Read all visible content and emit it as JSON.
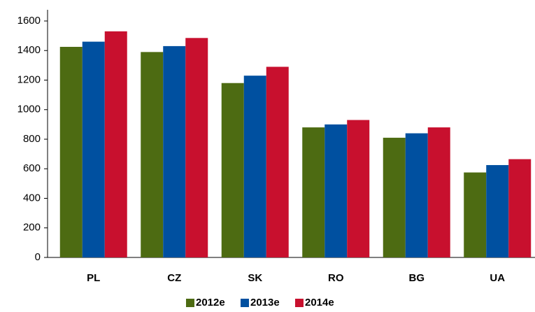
{
  "chart_data": {
    "type": "bar",
    "categories": [
      "PL",
      "CZ",
      "SK",
      "RO",
      "BG",
      "UA"
    ],
    "series": [
      {
        "name": "2012e",
        "color": "#4d6b12",
        "values": [
          1425,
          1390,
          1180,
          880,
          810,
          575
        ]
      },
      {
        "name": "2013e",
        "color": "#0050a0",
        "values": [
          1460,
          1430,
          1230,
          900,
          840,
          625
        ]
      },
      {
        "name": "2014e",
        "color": "#c8102e",
        "values": [
          1530,
          1485,
          1290,
          930,
          880,
          665
        ]
      }
    ],
    "ylim": [
      0,
      1600
    ],
    "yticks": [
      0,
      200,
      400,
      600,
      800,
      1000,
      1200,
      1400,
      1600
    ],
    "legend": "bottom"
  }
}
